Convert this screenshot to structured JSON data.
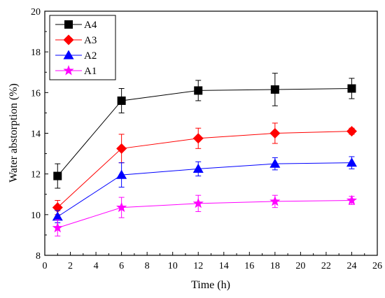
{
  "chart_data": {
    "type": "line",
    "xlabel": "Time (h)",
    "ylabel": "Water abstorption (%)",
    "xlim": [
      0,
      26
    ],
    "ylim": [
      8,
      20
    ],
    "x_ticks": [
      0,
      2,
      4,
      6,
      8,
      10,
      12,
      14,
      16,
      18,
      20,
      22,
      24,
      26
    ],
    "y_ticks": [
      8,
      10,
      12,
      14,
      16,
      18,
      20
    ],
    "grid": false,
    "legend_position": "top-left",
    "x": [
      1,
      6,
      12,
      18,
      24
    ],
    "series": [
      {
        "name": "A4",
        "color": "#000000",
        "marker": "square",
        "values": [
          11.9,
          15.6,
          16.1,
          16.15,
          16.2
        ],
        "errors": [
          0.6,
          0.6,
          0.5,
          0.8,
          0.5
        ]
      },
      {
        "name": "A3",
        "color": "#ff0000",
        "marker": "diamond",
        "values": [
          10.35,
          13.25,
          13.75,
          14.0,
          14.1
        ],
        "errors": [
          0.35,
          0.7,
          0.5,
          0.5,
          0.15
        ]
      },
      {
        "name": "A2",
        "color": "#0000ff",
        "marker": "triangle",
        "values": [
          9.9,
          11.95,
          12.25,
          12.5,
          12.55
        ],
        "errors": [
          0.3,
          0.6,
          0.35,
          0.3,
          0.3
        ]
      },
      {
        "name": "A1",
        "color": "#ff00ff",
        "marker": "star",
        "values": [
          9.35,
          10.35,
          10.55,
          10.65,
          10.7
        ],
        "errors": [
          0.4,
          0.5,
          0.4,
          0.3,
          0.2
        ]
      }
    ]
  }
}
